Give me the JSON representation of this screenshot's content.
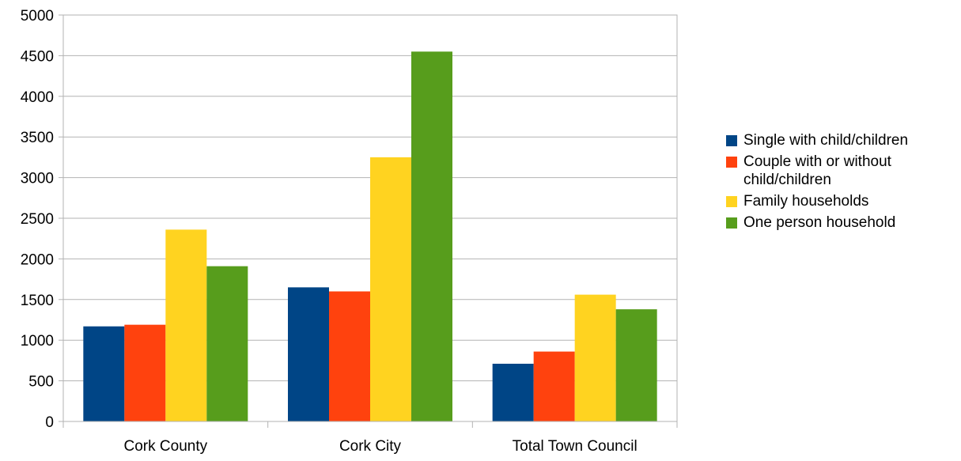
{
  "chart_data": {
    "type": "bar",
    "categories": [
      "Cork County",
      "Cork City",
      "Total Town Council"
    ],
    "series": [
      {
        "name": "Single with child/children",
        "color": "#004586",
        "values": [
          1170,
          1650,
          710
        ]
      },
      {
        "name": "Couple with or without child/children",
        "color": "#ff420e",
        "values": [
          1190,
          1600,
          860
        ]
      },
      {
        "name": "Family households",
        "color": "#ffd320",
        "values": [
          2360,
          3250,
          1560
        ]
      },
      {
        "name": "One person household",
        "color": "#579d1c",
        "values": [
          1910,
          4550,
          1380
        ]
      }
    ],
    "yticks": [
      "0",
      "500",
      "1000",
      "1500",
      "2000",
      "2500",
      "3000",
      "3500",
      "4000",
      "4500",
      "5000"
    ],
    "ylim": [
      0,
      5000
    ],
    "grid": true,
    "legend_position": "right"
  }
}
